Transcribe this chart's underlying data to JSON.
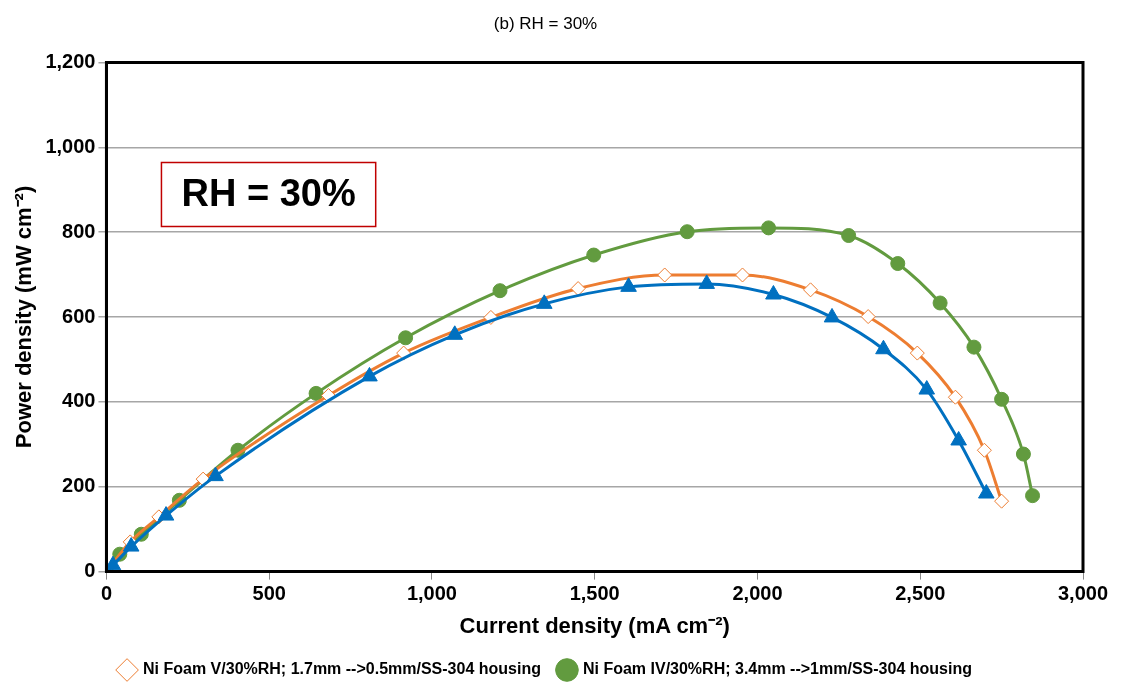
{
  "chart_data": {
    "type": "line",
    "title": "(b) RH = 30%",
    "xlabel": "Current density (mA cm⁻²)",
    "ylabel": "Power density (mW cm⁻²)",
    "xlim": [
      0,
      3000
    ],
    "xticks": [
      {
        "value": 0,
        "label": "0"
      },
      {
        "value": 500,
        "label": "500"
      },
      {
        "value": 1000,
        "label": "1,000"
      },
      {
        "value": 1500,
        "label": "1,500"
      },
      {
        "value": 2000,
        "label": "2,000"
      },
      {
        "value": 2500,
        "label": "2,500"
      },
      {
        "value": 3000,
        "label": "3,000"
      }
    ],
    "ylim": [
      0,
      1200
    ],
    "yticks": [
      {
        "value": 0,
        "label": "0"
      },
      {
        "value": 200,
        "label": "200"
      },
      {
        "value": 400,
        "label": "400"
      },
      {
        "value": 600,
        "label": "600"
      },
      {
        "value": 800,
        "label": "800"
      },
      {
        "value": 1000,
        "label": "1,000"
      },
      {
        "value": 1200,
        "label": "1,200"
      }
    ],
    "grid": "y",
    "legend": "bottom",
    "annotations": [
      "RH = 30%"
    ],
    "series": [
      {
        "name": "Ni Foam IV/30%RH; 3.4mm -->1mm/SS-304 housing",
        "color": "#629b3f",
        "marker": "circle",
        "x": [
          0,
          41,
          107,
          224,
          404,
          644,
          919,
          1209,
          1497,
          1784,
          2034,
          2280,
          2431,
          2561,
          2665,
          2750,
          2817,
          2845
        ],
        "values": [
          0,
          41,
          88,
          168,
          286,
          420,
          551,
          662,
          746,
          801,
          810,
          792,
          726,
          633,
          529,
          406,
          277,
          179
        ]
      },
      {
        "name": "Ni Foam V/30%RH; 1.7mm -->0.5mm/SS-304 housing",
        "color": "#ed7d31",
        "marker": "diamond",
        "x": [
          0,
          73,
          161,
          297,
          682,
          913,
          1181,
          1449,
          1715,
          1954,
          2163,
          2340,
          2491,
          2608,
          2697,
          2750
        ],
        "values": [
          0,
          70,
          129,
          218,
          415,
          515,
          599,
          667,
          699,
          699,
          664,
          601,
          515,
          411,
          286,
          166
        ]
      },
      {
        "color": "#0070c0",
        "marker": "triangle",
        "x": [
          0,
          20,
          76,
          183,
          335,
          808,
          1070,
          1345,
          1604,
          1844,
          2049,
          2229,
          2387,
          2520,
          2618,
          2703
        ],
        "values": [
          0,
          15,
          59,
          132,
          225,
          460,
          558,
          631,
          671,
          678,
          653,
          599,
          524,
          429,
          309,
          184
        ]
      }
    ]
  }
}
